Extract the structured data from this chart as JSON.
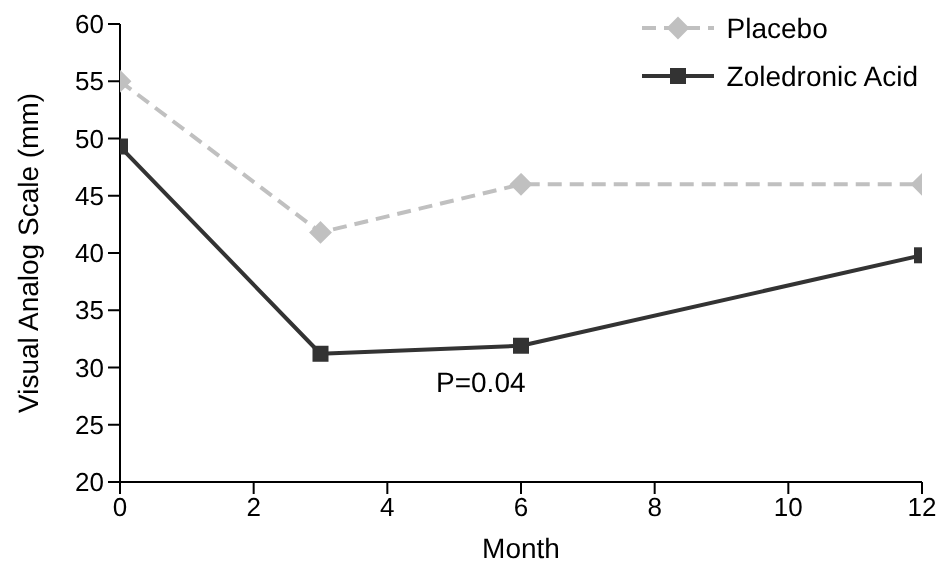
{
  "chart_data": {
    "type": "line",
    "xlabel": "Month",
    "ylabel": "Visual Analog Scale (mm)",
    "x": [
      0,
      3,
      6,
      12
    ],
    "series": [
      {
        "name": "Placebo",
        "color": "#c0c0c0",
        "values": [
          55,
          41.8,
          46,
          46
        ],
        "marker": "diamond",
        "line_style": "dashed"
      },
      {
        "name": "Zoledronic Acid",
        "color": "#333333",
        "values": [
          49.3,
          31.2,
          31.9,
          39.8
        ],
        "marker": "square",
        "line_style": "solid"
      }
    ],
    "xlim": [
      0,
      12
    ],
    "xticks": [
      0,
      2,
      4,
      6,
      8,
      10,
      12
    ],
    "ylim": [
      20,
      60
    ],
    "yticks": [
      20,
      25,
      30,
      35,
      40,
      45,
      50,
      55,
      60
    ],
    "grid": false,
    "legend": "top right",
    "annotations": [
      "P=0.04"
    ]
  }
}
